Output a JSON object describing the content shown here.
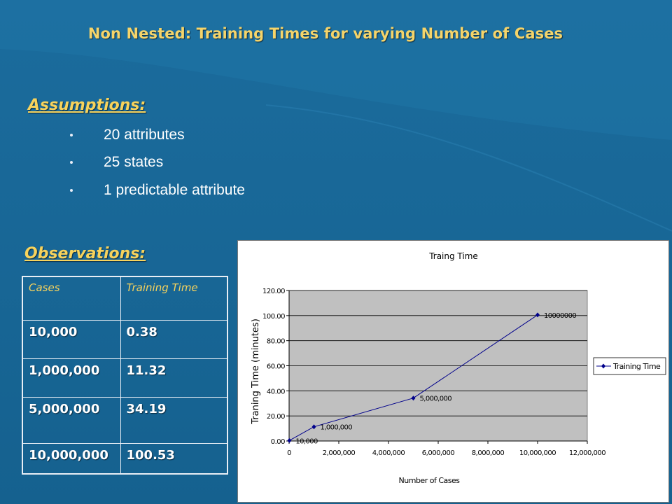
{
  "slide": {
    "title": "Non Nested: Training Times for varying Number of Cases",
    "background": "#1a6a9a",
    "accent": "#f7d35c"
  },
  "assumptions": {
    "heading": "Assumptions:",
    "items": [
      "20 attributes",
      "25 states",
      "1 predictable  attribute"
    ]
  },
  "observations": {
    "heading": "Observations:",
    "table": {
      "headers": [
        "Cases",
        "Training Time"
      ],
      "rows": [
        [
          "10,000",
          "0.38"
        ],
        [
          "1,000,000",
          "11.32"
        ],
        [
          "5,000,000",
          "34.19"
        ],
        [
          "10,000,000",
          "100.53"
        ]
      ]
    }
  },
  "chart_data": {
    "type": "line",
    "title": "Traing Time",
    "xlabel": "Number of Cases",
    "ylabel": "Traning Time (minutes)",
    "xlim": [
      0,
      12000000
    ],
    "ylim": [
      0,
      120
    ],
    "x_ticks": [
      0,
      2000000,
      4000000,
      6000000,
      8000000,
      10000000,
      12000000
    ],
    "x_tick_labels": [
      "0",
      "2,000,000",
      "4,000,000",
      "6,000,000",
      "8,000,000",
      "10,000,000",
      "12,000,000"
    ],
    "y_ticks": [
      0,
      20,
      40,
      60,
      80,
      100,
      120
    ],
    "y_tick_labels": [
      "0.00",
      "20.00",
      "40.00",
      "60.00",
      "80.00",
      "100.00",
      "120.00"
    ],
    "grid": true,
    "plot_background": "#c0c0c0",
    "legend_position": "right",
    "series": [
      {
        "name": "Training Time",
        "color": "#00008b",
        "x": [
          10000,
          1000000,
          5000000,
          10000000
        ],
        "y": [
          0.38,
          11.32,
          34.19,
          100.53
        ],
        "point_labels": [
          "10,000",
          "1,000,000",
          "5,000,000",
          "10000000"
        ]
      }
    ]
  }
}
